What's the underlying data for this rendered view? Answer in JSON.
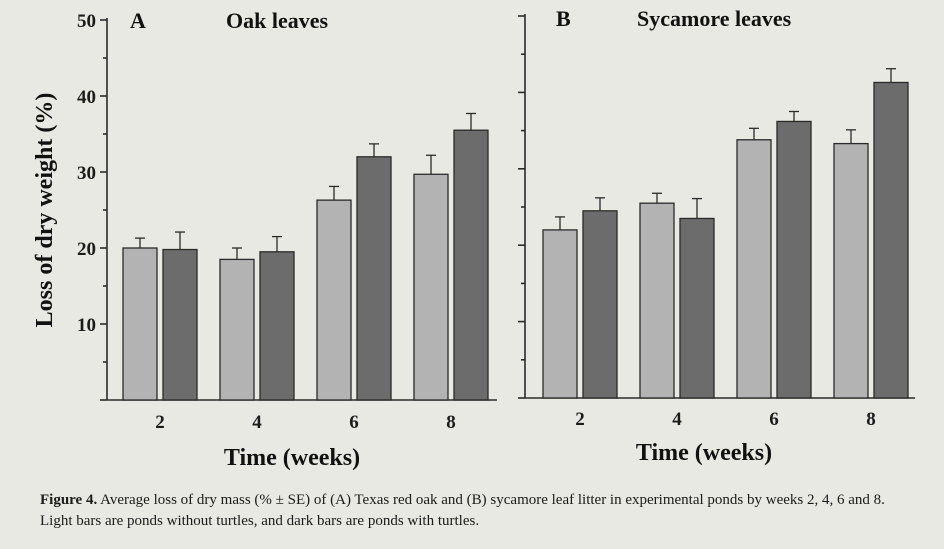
{
  "chart_data": [
    {
      "panel": "A",
      "title": "Oak leaves",
      "type": "bar",
      "categories": [
        "2",
        "4",
        "6",
        "8"
      ],
      "series": [
        {
          "values": [
            20.0,
            18.5,
            26.3,
            29.7
          ],
          "errors": [
            1.3,
            1.5,
            1.8,
            2.5
          ],
          "color": "#b3b3b3"
        },
        {
          "values": [
            19.8,
            19.5,
            32.0,
            35.5
          ],
          "errors": [
            2.3,
            2.0,
            1.7,
            2.2
          ],
          "color": "#6c6c6c"
        }
      ],
      "ylim": [
        0,
        50
      ],
      "yticks": [
        10,
        20,
        30,
        40,
        50
      ],
      "ylabel": "Loss of dry weight (%)",
      "xlabel": "Time (weeks)"
    },
    {
      "panel": "B",
      "title": "Sycamore leaves",
      "type": "bar",
      "categories": [
        "2",
        "4",
        "6",
        "8"
      ],
      "series": [
        {
          "values": [
            22.0,
            25.5,
            33.8,
            33.3
          ],
          "errors": [
            1.7,
            1.3,
            1.5,
            1.8
          ],
          "color": "#b3b3b3"
        },
        {
          "values": [
            24.5,
            23.5,
            36.2,
            41.3
          ],
          "errors": [
            1.7,
            2.6,
            1.3,
            1.8
          ],
          "color": "#6c6c6c"
        }
      ],
      "ylim": [
        0,
        50
      ],
      "yticks": [
        10,
        20,
        30,
        40,
        50
      ],
      "xlabel": "Time (weeks)"
    }
  ],
  "caption": {
    "label": "Figure 4.",
    "text": " Average loss of dry mass (% ± SE) of (A) Texas red oak and (B) sycamore leaf litter in experimental ponds by weeks 2, 4, 6 and 8. Light bars are ponds without turtles, and dark bars are ponds with turtles."
  }
}
